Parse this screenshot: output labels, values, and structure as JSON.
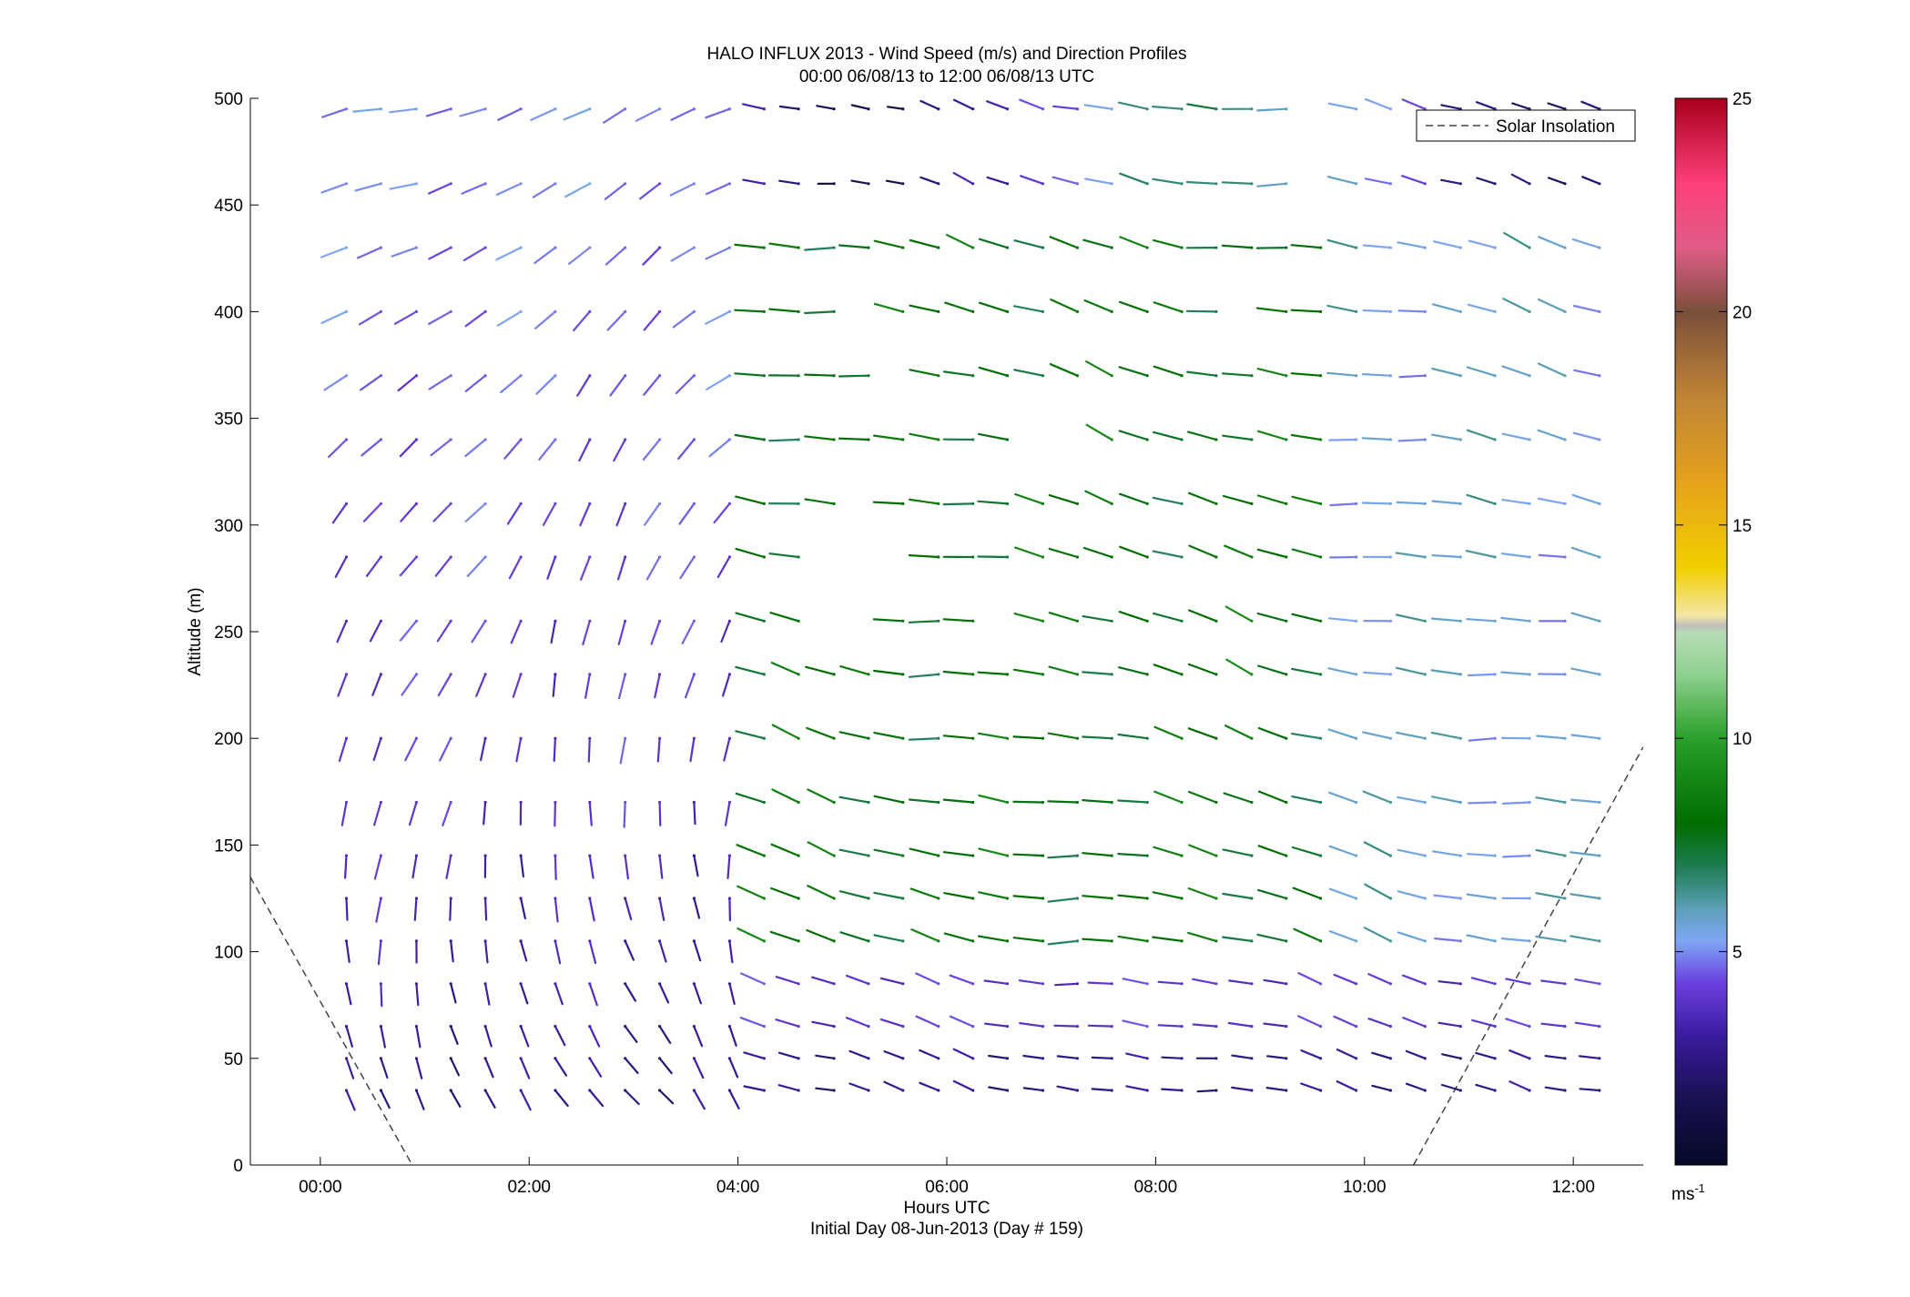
{
  "chart_data": {
    "type": "wind-barb-profile",
    "title": "HALO INFLUX 2013 - Wind Speed (m/s) and Direction Profiles",
    "subtitle": "00:00 06/08/13 to 12:00 06/08/13  UTC",
    "xlabel": "Hours UTC",
    "xlabel_sub": "Initial Day 08-Jun-2013 (Day # 159)",
    "ylabel": "Altitude (m)",
    "xlim_hours": [
      -0.67,
      12.67
    ],
    "ylim": [
      0,
      500
    ],
    "xticks": [
      {
        "value": 0,
        "label": "00:00"
      },
      {
        "value": 2,
        "label": "02:00"
      },
      {
        "value": 4,
        "label": "04:00"
      },
      {
        "value": 6,
        "label": "06:00"
      },
      {
        "value": 8,
        "label": "08:00"
      },
      {
        "value": 10,
        "label": "10:00"
      },
      {
        "value": 12,
        "label": "12:00"
      }
    ],
    "yticks": [
      0,
      50,
      100,
      150,
      200,
      250,
      300,
      350,
      400,
      450,
      500
    ],
    "legend": {
      "label": "Solar Insolation",
      "placement": "top-right"
    },
    "colorbar": {
      "min": 0,
      "max": 25,
      "ticks": [
        5,
        10,
        15,
        20,
        25
      ],
      "unit_base": "ms",
      "unit_exp": "-1"
    },
    "solar_insolation": [
      {
        "hours": [
          -0.67,
          0.88
        ],
        "altitude": [
          135,
          0
        ]
      },
      {
        "hours": [
          10.47,
          12.67
        ],
        "altitude": [
          0,
          196
        ]
      }
    ],
    "profile_times_hours": [
      0.25,
      0.58,
      0.92,
      1.25,
      1.58,
      1.92,
      2.25,
      2.58,
      2.92,
      3.25,
      3.58,
      3.92,
      4.25,
      4.58,
      4.92,
      5.25,
      5.58,
      5.92,
      6.25,
      6.58,
      6.92,
      7.25,
      7.58,
      7.92,
      8.25,
      8.58,
      8.92,
      9.25,
      9.58,
      9.92,
      10.25,
      10.58,
      10.92,
      11.25,
      11.58,
      11.92,
      12.25
    ],
    "altitude_levels_m": [
      35,
      50,
      65,
      85,
      105,
      125,
      145,
      170,
      200,
      230,
      255,
      285,
      310,
      340,
      370,
      400,
      430,
      460,
      495
    ],
    "wind_field_summary": [
      {
        "time_range": "00:15-03:45",
        "altitude_range": "30-230",
        "speed_ms": "2-4",
        "flow": "from north-west"
      },
      {
        "time_range": "00:15-03:45",
        "altitude_range": "230-495",
        "speed_ms": "3-5",
        "flow": "veering to south-west with height"
      },
      {
        "time_range": "04:35-12:15",
        "altitude_range": "30-100",
        "speed_ms": "2-4",
        "flow": "westerly"
      },
      {
        "time_range": "04:35-09:30",
        "altitude_range": "100-440",
        "speed_ms": "7-9",
        "flow": "westerly"
      },
      {
        "time_range": "09:30-12:15",
        "altitude_range": "100-440",
        "speed_ms": "5-8",
        "flow": "westerly"
      },
      {
        "time_range": "04:35-12:15",
        "altitude_range": "440-495",
        "speed_ms": "3-8",
        "flow": "westerly"
      }
    ]
  }
}
